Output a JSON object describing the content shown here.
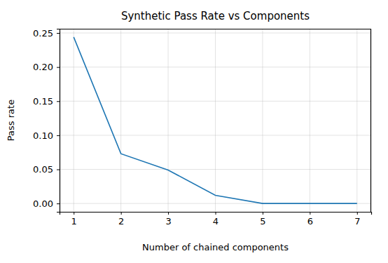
{
  "chart_data": {
    "type": "line",
    "title": "Synthetic Pass Rate vs Components",
    "x_label": "Number of chained components",
    "y_label": "Pass rate",
    "x": [
      1,
      2,
      3,
      4,
      5,
      6,
      7
    ],
    "values": [
      0.244,
      0.073,
      0.049,
      0.012,
      0.0,
      0.0,
      0.0
    ],
    "color": "#1f77b4",
    "xlim": [
      0.7,
      7.3
    ],
    "xticks": [
      1,
      2,
      3,
      4,
      5,
      6,
      7
    ],
    "ylim": [
      -0.0122,
      0.2562
    ],
    "yticks": [
      {
        "value": 0,
        "label": "0.00"
      },
      {
        "value": 0.05,
        "label": "0.05"
      },
      {
        "value": 0.1,
        "label": "0.10"
      },
      {
        "value": 0.15,
        "label": "0.15"
      },
      {
        "value": 0.2,
        "label": "0.20"
      },
      {
        "value": 0.25,
        "label": "0.25"
      }
    ],
    "grid": true
  }
}
